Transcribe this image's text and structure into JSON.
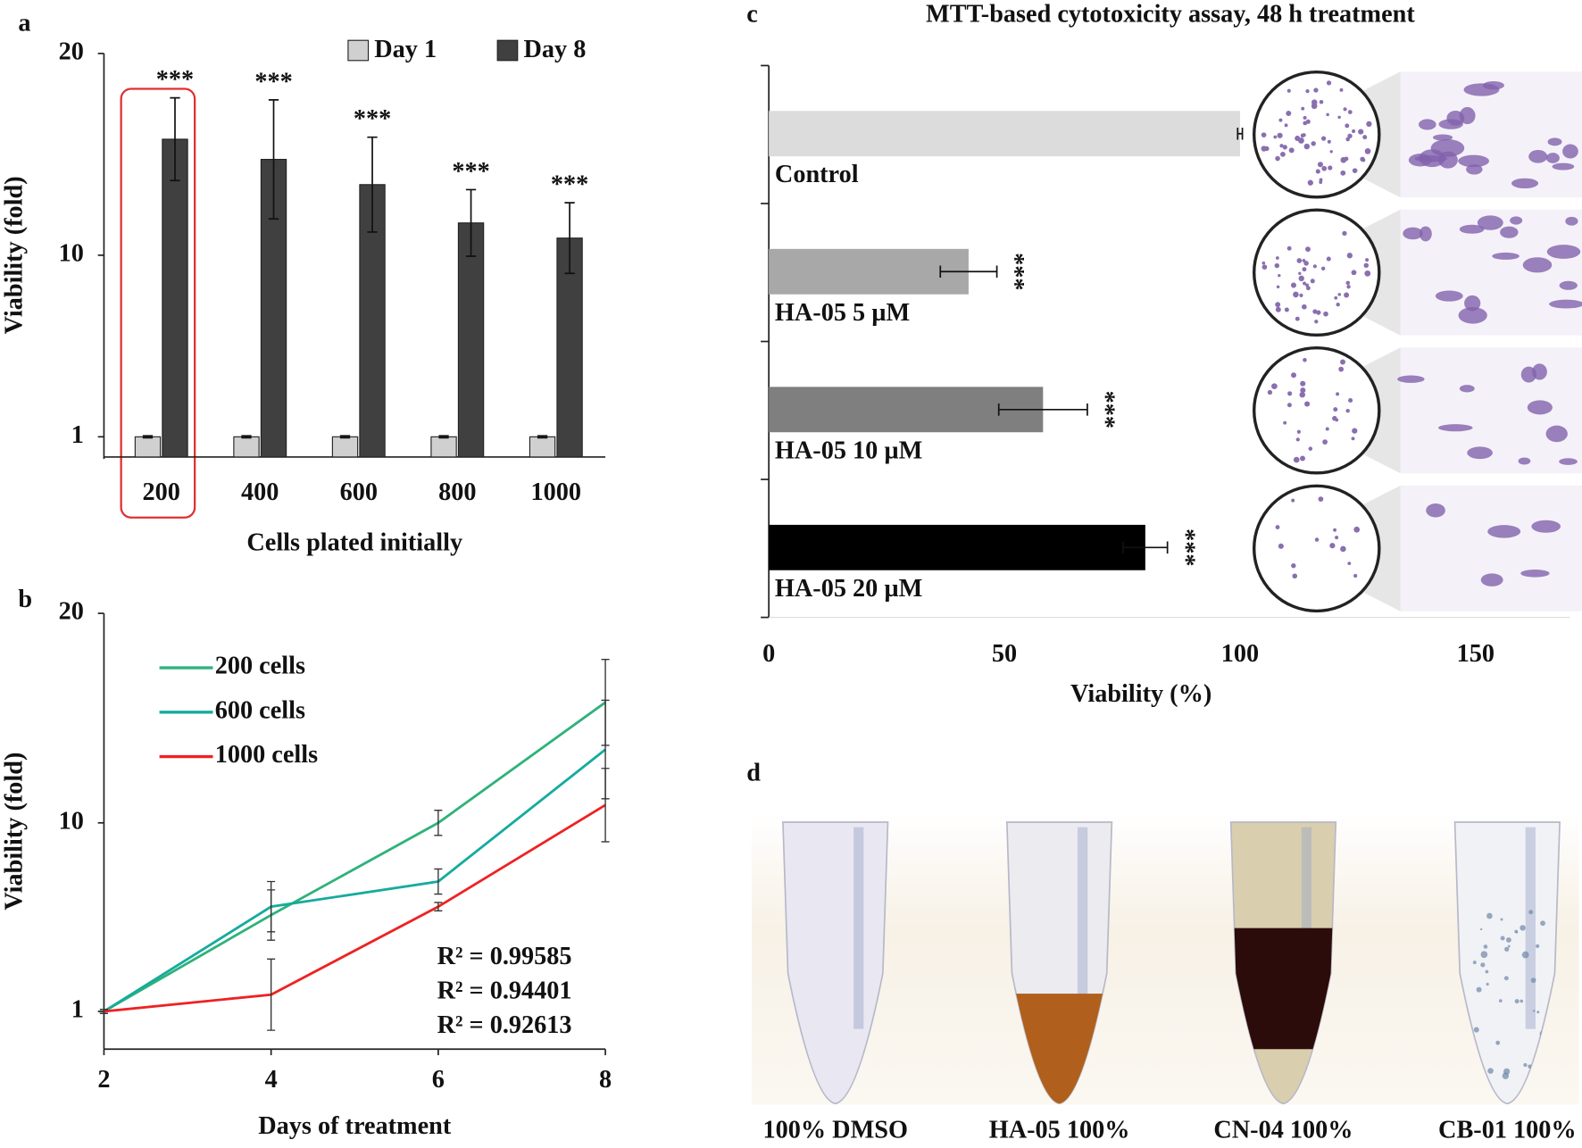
{
  "chart_data": [
    {
      "type": "bar",
      "panel": "a",
      "categories": [
        "200",
        "400",
        "600",
        "800",
        "1000"
      ],
      "x_label": "Cells plated initially",
      "y_label": "Viability (fold)",
      "ylim": [
        0,
        20
      ],
      "yticks": [
        1,
        10,
        20
      ],
      "legend": "top-right",
      "series": [
        {
          "name": "Day 1",
          "color": "#d0d0d0",
          "values": [
            1,
            1,
            1,
            1,
            1
          ],
          "errors": [
            0.05,
            0.05,
            0.05,
            0.05,
            0.05
          ]
        },
        {
          "name": "Day 8",
          "color": "#404040",
          "values": [
            15.75,
            14.75,
            13.5,
            11.6,
            10.85
          ],
          "errors": [
            2.05,
            2.95,
            2.35,
            1.65,
            1.75
          ],
          "significance": [
            "***",
            "***",
            "***",
            "***",
            "***"
          ]
        }
      ]
    },
    {
      "type": "line",
      "panel": "b",
      "x": [
        2,
        4,
        6,
        8
      ],
      "xlim": [
        2,
        8
      ],
      "xticks": [
        2,
        4,
        6,
        8
      ],
      "ylim": [
        -0.8,
        20
      ],
      "yticks": [
        1,
        10,
        20
      ],
      "legend": "top-left",
      "x_label": "Days of treatment",
      "y_label": "Viability (fold)",
      "series": [
        {
          "name": "200 cells",
          "color": "#2fb27a",
          "values": [
            1,
            5.6,
            10,
            15.75
          ],
          "errors": [
            0.1,
            1.2,
            0.6,
            2.05
          ],
          "r2_label": "R² = 0.99585"
        },
        {
          "name": "600 cells",
          "color": "#16ab9e",
          "values": [
            1,
            6,
            7.2,
            13.5
          ],
          "errors": [
            0.1,
            1.2,
            0.6,
            2.35
          ],
          "r2_label": "R² = 0.94401"
        },
        {
          "name": "1000 cells",
          "color": "#ee2222",
          "values": [
            1,
            1.8,
            6,
            10.85
          ],
          "errors": [
            0.1,
            1.7,
            0.2,
            1.75
          ],
          "r2_label": "R² = 0.92613"
        }
      ]
    },
    {
      "type": "hbar",
      "panel": "c",
      "title": "MTT-based cytotoxicity assay, 48 h treatment",
      "categories": [
        "Control",
        "HA-05 5 µM",
        "HA-05 10 µM",
        "HA-05 20 µM"
      ],
      "values": [
        100,
        42.4,
        58.2,
        79.9
      ],
      "errors": [
        0.5,
        6,
        9.4,
        4.7
      ],
      "colors": [
        "#dcdcdc",
        "#a8a8a8",
        "#7f7f7f",
        "#000000"
      ],
      "significance": [
        null,
        "***",
        "***",
        "***"
      ],
      "xlim": [
        0,
        170
      ],
      "xticks": [
        0,
        50,
        100,
        150
      ],
      "x_label": "Viability (%)"
    }
  ],
  "photo_panel": {
    "panel": "d",
    "captions": [
      "100% DMSO",
      "HA-05 100%",
      "CN-04 100%",
      "CB-01 100%"
    ]
  }
}
